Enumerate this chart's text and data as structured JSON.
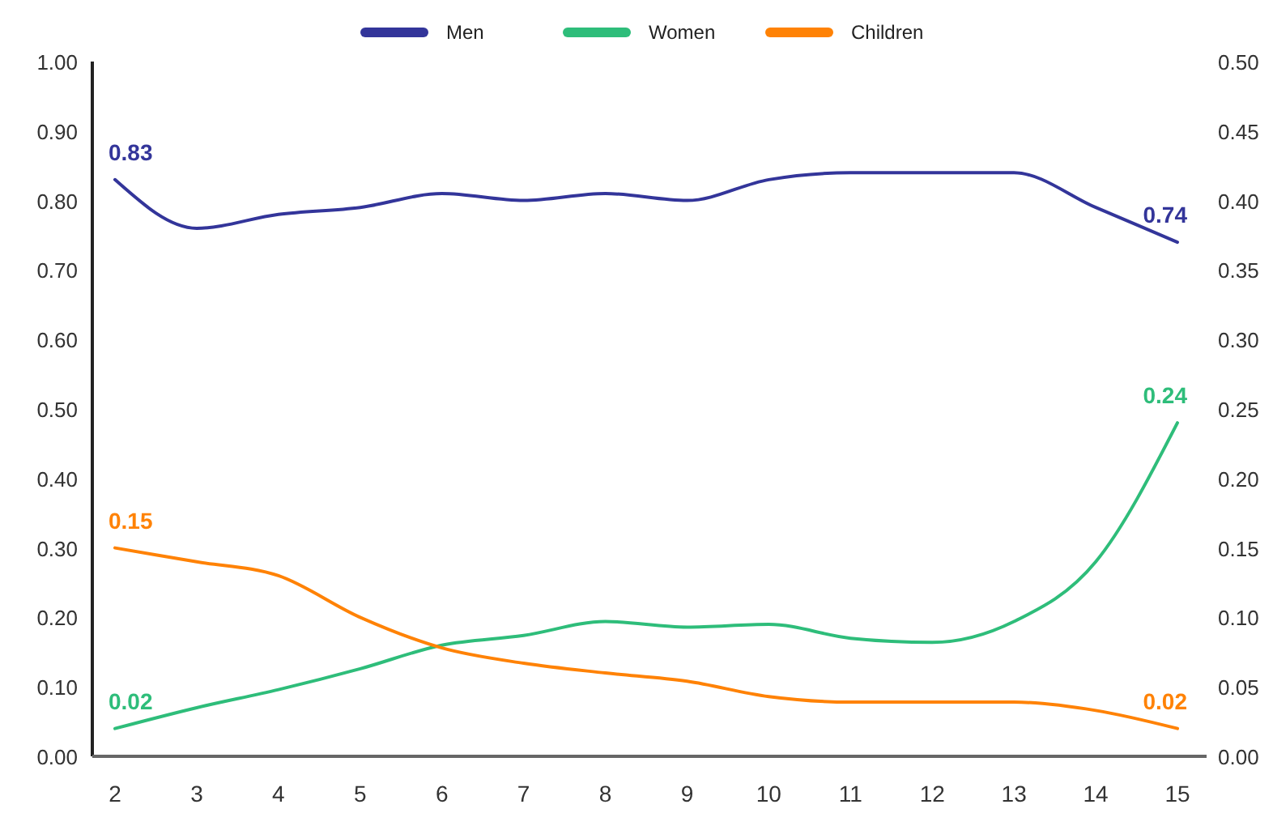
{
  "chart_data": {
    "type": "line",
    "categories": [
      "2",
      "3",
      "4",
      "5",
      "6",
      "7",
      "8",
      "9",
      "10",
      "11",
      "12",
      "13",
      "14",
      "15"
    ],
    "series": [
      {
        "name": "Men",
        "color": "#33359a",
        "values": [
          0.83,
          0.76,
          0.78,
          0.79,
          0.81,
          0.8,
          0.81,
          0.8,
          0.83,
          0.84,
          0.84,
          0.84,
          0.79,
          0.74
        ],
        "value_labels": [
          "0.83",
          null,
          null,
          null,
          null,
          null,
          null,
          null,
          null,
          null,
          null,
          null,
          null,
          "0.74"
        ]
      },
      {
        "name": "Women",
        "color": "#2ebd7a",
        "axis": "y2",
        "values": [
          0.02,
          0.035,
          0.048,
          0.063,
          0.08,
          0.087,
          0.097,
          0.093,
          0.095,
          0.085,
          0.082,
          0.097,
          0.14,
          0.24
        ],
        "value_labels": [
          "0.02",
          null,
          null,
          null,
          null,
          null,
          null,
          null,
          null,
          null,
          null,
          null,
          null,
          "0.24"
        ]
      },
      {
        "name": "Children",
        "color": "#ff8205",
        "axis": "y2",
        "values": [
          0.15,
          0.14,
          0.13,
          0.1,
          0.078,
          0.067,
          0.06,
          0.054,
          0.043,
          0.039,
          0.039,
          0.039,
          0.033,
          0.02
        ],
        "value_labels": [
          "0.15",
          null,
          null,
          null,
          null,
          null,
          null,
          null,
          null,
          null,
          null,
          null,
          null,
          "0.02"
        ]
      }
    ],
    "ylim": [
      0,
      1
    ],
    "yticks": [
      {
        "value": 0,
        "label": "0.00"
      },
      {
        "value": 0.1,
        "label": "0.10"
      },
      {
        "value": 0.2,
        "label": "0.20"
      },
      {
        "value": 0.3,
        "label": "0.30"
      },
      {
        "value": 0.4,
        "label": "0.40"
      },
      {
        "value": 0.5,
        "label": "0.50"
      },
      {
        "value": 0.6,
        "label": "0.60"
      },
      {
        "value": 0.7,
        "label": "0.70"
      },
      {
        "value": 0.8,
        "label": "0.80"
      },
      {
        "value": 0.9,
        "label": "0.90"
      },
      {
        "value": 1,
        "label": "1.00"
      }
    ],
    "y2lim": [
      0,
      0.5
    ],
    "y2ticks": [
      {
        "value": 0,
        "label": "0.00"
      },
      {
        "value": 0.05,
        "label": "0.05"
      },
      {
        "value": 0.1,
        "label": "0.10"
      },
      {
        "value": 0.15,
        "label": "0.15"
      },
      {
        "value": 0.2,
        "label": "0.20"
      },
      {
        "value": 0.25,
        "label": "0.25"
      },
      {
        "value": 0.3,
        "label": "0.30"
      },
      {
        "value": 0.35,
        "label": "0.35"
      },
      {
        "value": 0.4,
        "label": "0.40"
      },
      {
        "value": 0.45,
        "label": "0.45"
      },
      {
        "value": 0.5,
        "label": "0.50"
      }
    ],
    "grid": false,
    "legend": "top",
    "line_style": "solid",
    "marker": "none"
  }
}
